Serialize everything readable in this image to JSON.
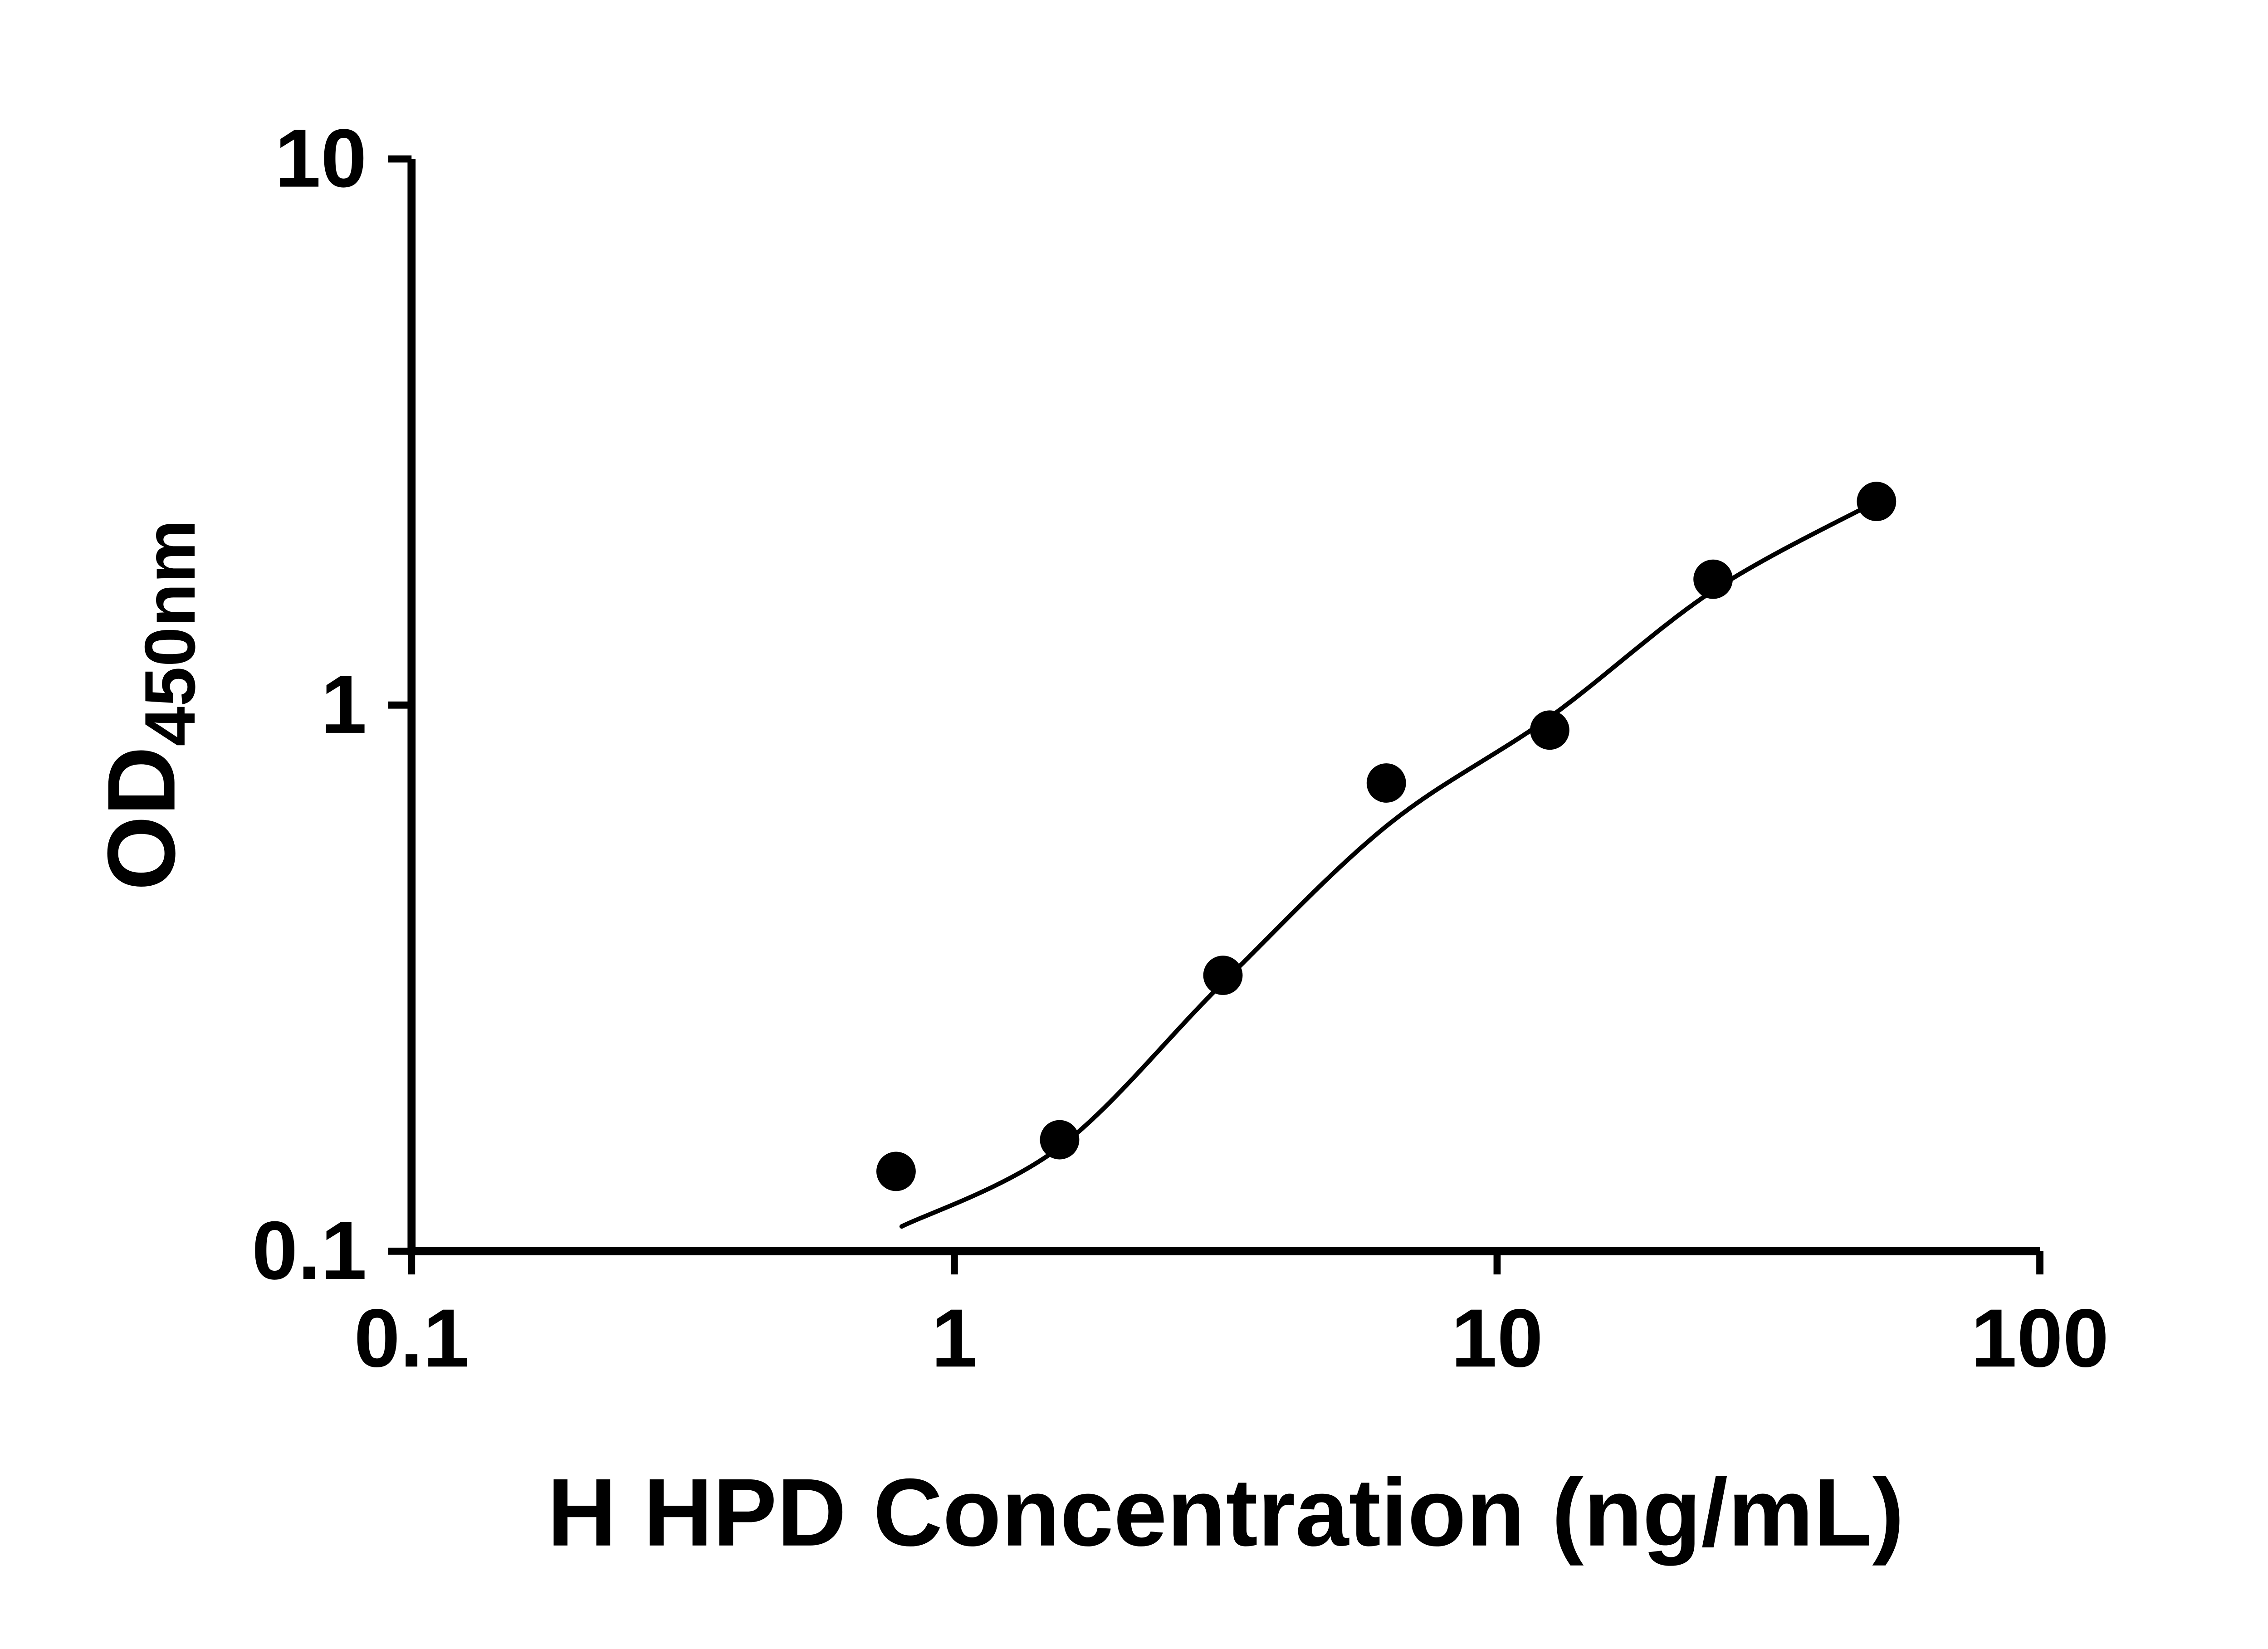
{
  "figure": {
    "background": "#ffffff"
  },
  "chart_data": {
    "type": "scatter",
    "title": "",
    "xlabel": "H HPD Concentration (ng/mL)",
    "ylabel": "OD450nm",
    "ylabel_main": "OD",
    "ylabel_sub": "450nm",
    "xscale": "log",
    "yscale": "log",
    "xlim": [
      0.1,
      100
    ],
    "ylim": [
      0.1,
      10
    ],
    "grid": false,
    "legend": "none",
    "x_ticks": {
      "values": [
        0.1,
        1,
        10,
        100
      ],
      "labels": [
        "0.1",
        "1",
        "10",
        "100"
      ]
    },
    "y_ticks": {
      "values": [
        0.1,
        1,
        10
      ],
      "labels": [
        "0.1",
        "1",
        "10"
      ]
    },
    "colors": {
      "points": "#000000",
      "line": "#000000",
      "axes": "#000000",
      "background": "#ffffff"
    },
    "series": [
      {
        "name": "standard-data-points",
        "type": "scatter",
        "marker": "filled-circle",
        "color": "#000000",
        "x": [
          0.781,
          1.563,
          3.125,
          6.25,
          12.5,
          25,
          50
        ],
        "y": [
          0.14,
          0.16,
          0.32,
          0.72,
          0.9,
          1.7,
          2.36
        ]
      },
      {
        "name": "four-parameter-fit-curve",
        "type": "line",
        "color": "#000000",
        "x": [
          0.8,
          1.563,
          3.125,
          6.25,
          12.5,
          25,
          50
        ],
        "y": [
          0.111,
          0.155,
          0.31,
          0.6,
          0.95,
          1.62,
          2.36
        ]
      }
    ]
  }
}
